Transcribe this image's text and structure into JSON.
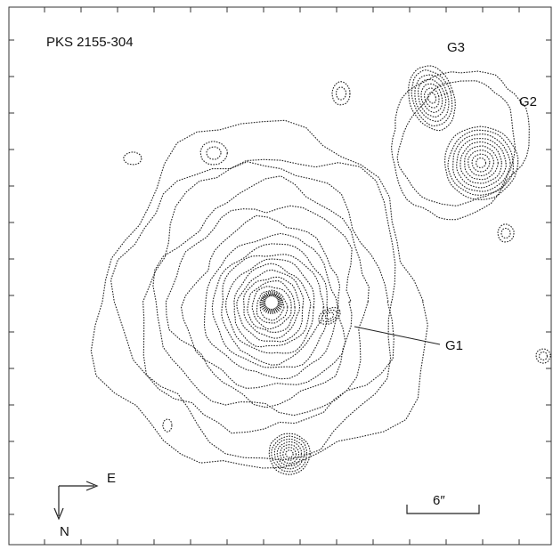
{
  "title": "PKS 2155-304",
  "labels": {
    "g1": "G1",
    "g2": "G2",
    "g3": "G3"
  },
  "compass": {
    "east": "E",
    "north": "N"
  },
  "scale_bar": "6″"
}
